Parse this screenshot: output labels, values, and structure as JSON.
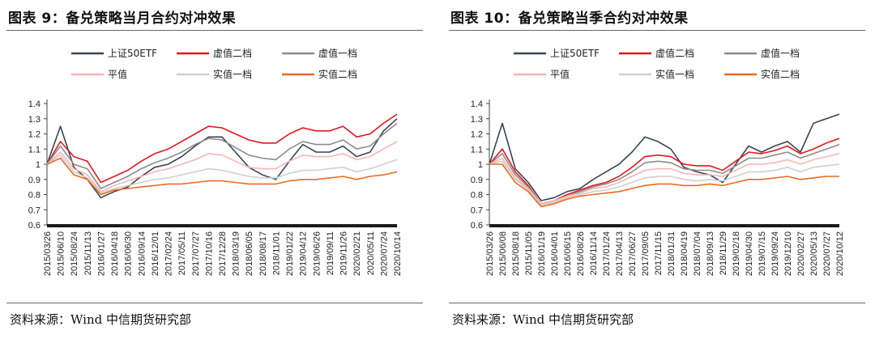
{
  "charts": [
    {
      "title": "图表 9：备兑策略当月合约对冲效果",
      "source": "资料来源：Wind 中信期货研究部"
    },
    {
      "title": "图表 10：备兑策略当季合约对冲效果",
      "source": "资料来源：Wind 中信期货研究部"
    }
  ],
  "chart_data": [
    {
      "type": "line",
      "title": "图表 9：备兑策略当月合约对冲效果",
      "ylim": [
        0.6,
        1.4
      ],
      "yticks": [
        "0.6",
        "0.7",
        "0.8",
        "0.9",
        "1",
        "1.1",
        "1.2",
        "1.3",
        "1.4"
      ],
      "x": [
        "2015/03/26",
        "2015/06/10",
        "2015/08/24",
        "2015/11/13",
        "2016/01/27",
        "2016/04/18",
        "2016/06/30",
        "2016/09/14",
        "2016/12/01",
        "2017/02/24",
        "2017/05/11",
        "2017/07/27",
        "2017/10/16",
        "2017/12/28",
        "2018/03/19",
        "2018/06/05",
        "2018/08/17",
        "2018/11/01",
        "2019/01/22",
        "2019/04/12",
        "2019/06/26",
        "2019/09/11",
        "2019/11/26",
        "2020/02/21",
        "2020/05/11",
        "2020/07/24",
        "2020/10/14"
      ],
      "series": [
        {
          "name": "上证50ETF",
          "color": "#3b4354",
          "values": [
            1.0,
            1.25,
            0.98,
            0.9,
            0.78,
            0.82,
            0.85,
            0.92,
            0.98,
            1.0,
            1.05,
            1.12,
            1.18,
            1.18,
            1.08,
            0.98,
            0.93,
            0.9,
            1.02,
            1.13,
            1.08,
            1.08,
            1.12,
            1.05,
            1.08,
            1.22,
            1.3
          ]
        },
        {
          "name": "虚值二档",
          "color": "#e3171c",
          "values": [
            1.0,
            1.15,
            1.05,
            1.02,
            0.88,
            0.92,
            0.96,
            1.02,
            1.07,
            1.1,
            1.15,
            1.2,
            1.25,
            1.24,
            1.2,
            1.16,
            1.14,
            1.14,
            1.2,
            1.24,
            1.22,
            1.22,
            1.25,
            1.18,
            1.2,
            1.27,
            1.33
          ]
        },
        {
          "name": "虚值一档",
          "color": "#8c8c8c",
          "values": [
            1.0,
            1.12,
            1.0,
            0.97,
            0.84,
            0.88,
            0.92,
            0.97,
            1.01,
            1.04,
            1.08,
            1.13,
            1.17,
            1.16,
            1.11,
            1.06,
            1.04,
            1.03,
            1.1,
            1.15,
            1.13,
            1.13,
            1.16,
            1.1,
            1.12,
            1.2,
            1.27
          ]
        },
        {
          "name": "平值",
          "color": "#f4b6b4",
          "values": [
            1.0,
            1.08,
            0.97,
            0.93,
            0.82,
            0.86,
            0.89,
            0.92,
            0.95,
            0.97,
            1.0,
            1.03,
            1.07,
            1.06,
            1.02,
            0.98,
            0.97,
            0.97,
            1.02,
            1.06,
            1.05,
            1.05,
            1.07,
            1.03,
            1.05,
            1.1,
            1.15
          ]
        },
        {
          "name": "实值一档",
          "color": "#cfcfcf",
          "values": [
            1.0,
            1.06,
            0.95,
            0.91,
            0.81,
            0.84,
            0.86,
            0.88,
            0.9,
            0.91,
            0.93,
            0.95,
            0.97,
            0.96,
            0.94,
            0.92,
            0.91,
            0.91,
            0.94,
            0.96,
            0.96,
            0.97,
            0.98,
            0.95,
            0.97,
            1.0,
            1.03
          ]
        },
        {
          "name": "实值二档",
          "color": "#ee6a1e",
          "values": [
            1.0,
            1.04,
            0.93,
            0.9,
            0.8,
            0.83,
            0.84,
            0.85,
            0.86,
            0.87,
            0.87,
            0.88,
            0.89,
            0.89,
            0.88,
            0.87,
            0.87,
            0.87,
            0.89,
            0.9,
            0.9,
            0.91,
            0.92,
            0.9,
            0.92,
            0.93,
            0.95
          ]
        }
      ]
    },
    {
      "type": "line",
      "title": "图表 10：备兑策略当季合约对冲效果",
      "ylim": [
        0.6,
        1.4
      ],
      "yticks": [
        "0.6",
        "0.7",
        "0.8",
        "0.9",
        "1",
        "1.1",
        "1.2",
        "1.3",
        "1.4"
      ],
      "x": [
        "2015/03/26",
        "2015/06/08",
        "2015/08/18",
        "2015/11/05",
        "2016/01/19",
        "2016/04/01",
        "2016/06/15",
        "2016/08/26",
        "2016/11/14",
        "2017/01/24",
        "2017/04/13",
        "2017/06/27",
        "2017/09/05",
        "2017/11/15",
        "2018/01/31",
        "2018/04/19",
        "2018/07/04",
        "2018/09/13",
        "2018/11/29",
        "2019/02/18",
        "2019/04/30",
        "2019/07/15",
        "2019/09/24",
        "2019/12/10",
        "2020/02/27",
        "2020/05/13",
        "2020/07/27",
        "2020/10/12"
      ],
      "series": [
        {
          "name": "上证50ETF",
          "color": "#3b4354",
          "values": [
            1.0,
            1.27,
            0.97,
            0.88,
            0.76,
            0.78,
            0.82,
            0.84,
            0.9,
            0.95,
            1.0,
            1.08,
            1.18,
            1.15,
            1.1,
            0.98,
            0.95,
            0.93,
            0.88,
            1.0,
            1.12,
            1.08,
            1.12,
            1.15,
            1.08,
            1.27,
            1.3,
            1.33
          ]
        },
        {
          "name": "虚值二档",
          "color": "#e3171c",
          "values": [
            1.0,
            1.1,
            0.95,
            0.86,
            0.74,
            0.76,
            0.8,
            0.83,
            0.86,
            0.88,
            0.92,
            0.98,
            1.05,
            1.06,
            1.05,
            1.0,
            0.99,
            0.99,
            0.96,
            1.02,
            1.08,
            1.07,
            1.09,
            1.12,
            1.07,
            1.1,
            1.14,
            1.17
          ]
        },
        {
          "name": "虚值一档",
          "color": "#8c8c8c",
          "values": [
            1.0,
            1.07,
            0.93,
            0.85,
            0.74,
            0.76,
            0.79,
            0.82,
            0.85,
            0.87,
            0.9,
            0.95,
            1.01,
            1.02,
            1.01,
            0.97,
            0.96,
            0.96,
            0.94,
            0.99,
            1.04,
            1.04,
            1.06,
            1.08,
            1.04,
            1.07,
            1.1,
            1.13
          ]
        },
        {
          "name": "平值",
          "color": "#f4b6b4",
          "values": [
            1.0,
            1.04,
            0.91,
            0.84,
            0.74,
            0.76,
            0.79,
            0.81,
            0.84,
            0.85,
            0.88,
            0.92,
            0.96,
            0.97,
            0.97,
            0.94,
            0.93,
            0.93,
            0.92,
            0.96,
            1.0,
            1.0,
            1.01,
            1.03,
            1.0,
            1.03,
            1.05,
            1.07
          ]
        },
        {
          "name": "实值一档",
          "color": "#cfcfcf",
          "values": [
            1.0,
            1.02,
            0.9,
            0.83,
            0.73,
            0.75,
            0.78,
            0.8,
            0.82,
            0.83,
            0.85,
            0.88,
            0.91,
            0.92,
            0.92,
            0.9,
            0.89,
            0.9,
            0.89,
            0.92,
            0.95,
            0.95,
            0.96,
            0.98,
            0.95,
            0.98,
            0.99,
            1.0
          ]
        },
        {
          "name": "实值二档",
          "color": "#ee6a1e",
          "values": [
            1.0,
            1.0,
            0.88,
            0.82,
            0.72,
            0.74,
            0.77,
            0.79,
            0.8,
            0.81,
            0.82,
            0.84,
            0.86,
            0.87,
            0.87,
            0.86,
            0.86,
            0.87,
            0.86,
            0.88,
            0.9,
            0.9,
            0.91,
            0.92,
            0.9,
            0.91,
            0.92,
            0.92
          ]
        }
      ]
    }
  ]
}
